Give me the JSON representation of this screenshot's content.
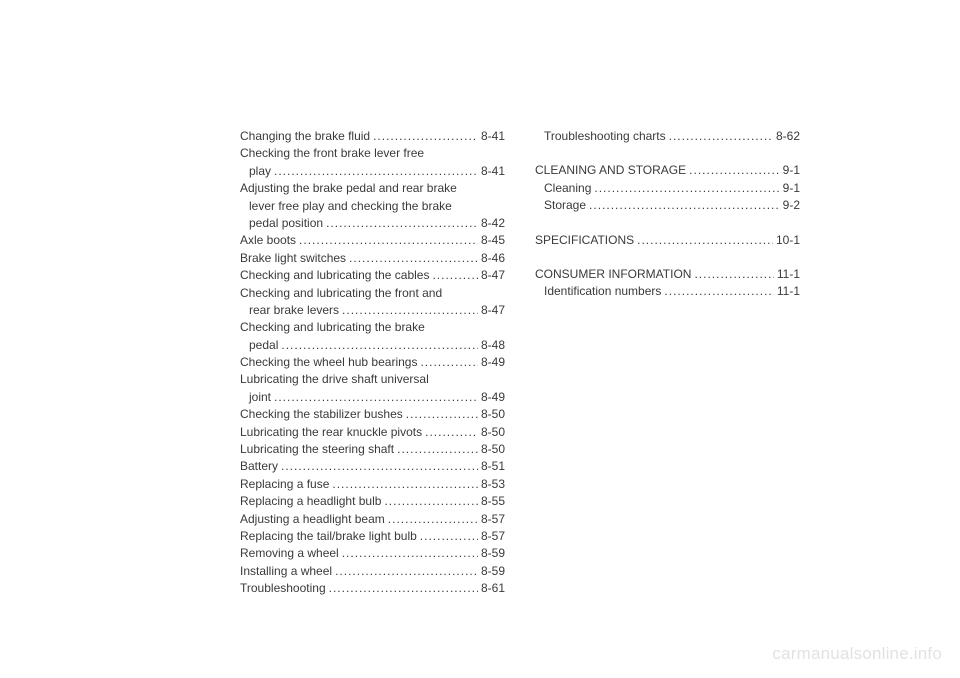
{
  "columns": {
    "left": [
      {
        "type": "line",
        "label": "Changing the brake fluid",
        "page": "8-41"
      },
      {
        "type": "cont",
        "label": "Checking the front brake lever free"
      },
      {
        "type": "contend",
        "label": "play",
        "page": "8-41"
      },
      {
        "type": "cont",
        "label": "Adjusting the brake pedal and rear brake"
      },
      {
        "type": "contmid",
        "label": "lever free play and checking the brake"
      },
      {
        "type": "contend",
        "label": "pedal position",
        "page": "8-42"
      },
      {
        "type": "line",
        "label": "Axle boots",
        "page": "8-45"
      },
      {
        "type": "line",
        "label": "Brake light switches",
        "page": "8-46"
      },
      {
        "type": "line",
        "label": "Checking and lubricating the cables",
        "page": "8-47"
      },
      {
        "type": "cont",
        "label": "Checking and lubricating the front and"
      },
      {
        "type": "contend",
        "label": "rear brake levers",
        "page": "8-47"
      },
      {
        "type": "cont",
        "label": "Checking and lubricating the brake"
      },
      {
        "type": "contend",
        "label": "pedal",
        "page": "8-48"
      },
      {
        "type": "line",
        "label": "Checking the wheel hub bearings",
        "page": "8-49"
      },
      {
        "type": "cont",
        "label": "Lubricating the drive shaft universal"
      },
      {
        "type": "contend",
        "label": "joint",
        "page": "8-49"
      },
      {
        "type": "line",
        "label": "Checking the stabilizer bushes",
        "page": "8-50"
      },
      {
        "type": "line",
        "label": "Lubricating the rear knuckle pivots",
        "page": "8-50"
      },
      {
        "type": "line",
        "label": "Lubricating the steering shaft",
        "page": "8-50"
      },
      {
        "type": "line",
        "label": "Battery",
        "page": "8-51"
      },
      {
        "type": "line",
        "label": "Replacing a fuse",
        "page": "8-53"
      },
      {
        "type": "line",
        "label": "Replacing a headlight bulb",
        "page": "8-55"
      },
      {
        "type": "line",
        "label": "Adjusting a headlight beam",
        "page": "8-57"
      },
      {
        "type": "line",
        "label": "Replacing the tail/brake light bulb",
        "page": "8-57"
      },
      {
        "type": "line",
        "label": "Removing a wheel",
        "page": "8-59"
      },
      {
        "type": "line",
        "label": "Installing a wheel",
        "page": "8-59"
      },
      {
        "type": "line",
        "label": "Troubleshooting",
        "page": "8-61"
      }
    ],
    "right": [
      {
        "type": "lineind",
        "label": "Troubleshooting charts",
        "page": "8-62"
      },
      {
        "type": "gap"
      },
      {
        "type": "line",
        "label": "CLEANING AND STORAGE",
        "page": "9-1"
      },
      {
        "type": "lineind",
        "label": "Cleaning",
        "page": "9-1"
      },
      {
        "type": "lineind",
        "label": "Storage",
        "page": "9-2"
      },
      {
        "type": "gap"
      },
      {
        "type": "line",
        "label": "SPECIFICATIONS",
        "page": "10-1"
      },
      {
        "type": "gap"
      },
      {
        "type": "line",
        "label": "CONSUMER INFORMATION",
        "page": "11-1"
      },
      {
        "type": "lineind",
        "label": "Identification numbers",
        "page": "11-1"
      }
    ]
  },
  "watermark": "carmanualsonline.info"
}
